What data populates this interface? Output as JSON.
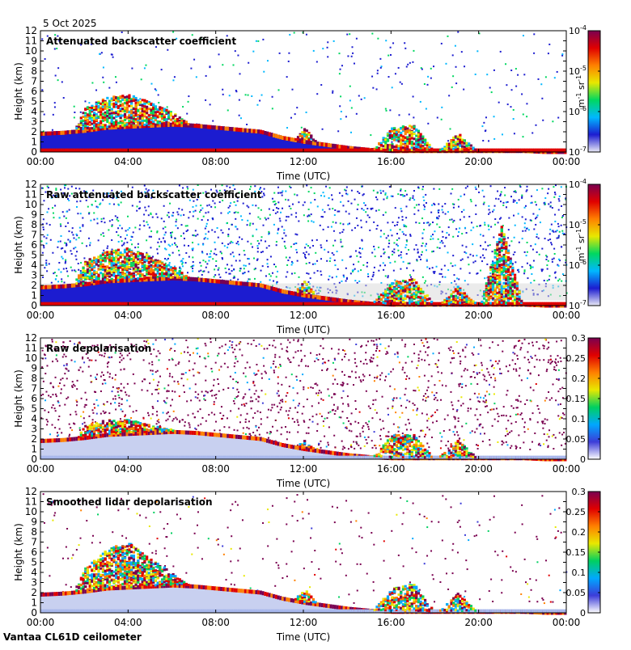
{
  "date": "5 Oct 2025",
  "footer": "Vantaa CL61D ceilometer",
  "colorbars": {
    "backscatter": {
      "stops": [
        "#e9e9f5",
        "#1c1cd0",
        "#00b8ff",
        "#00d860",
        "#e8e800",
        "#ff8000",
        "#e00000",
        "#7a0050"
      ],
      "ticks": [
        "10-7",
        "10-6",
        "10-5",
        "10-4"
      ],
      "unit_main_1": "m",
      "unit_exp_1": "-1",
      "unit_main_2": " sr",
      "unit_exp_2": "-1"
    },
    "depolarisation": {
      "stops": [
        "#ffffff",
        "#3c3cd8",
        "#00a8ff",
        "#00d060",
        "#e8e800",
        "#ff8000",
        "#e00000",
        "#7a0050"
      ],
      "ticks": [
        "0",
        "0.05",
        "0.1",
        "0.15",
        "0.2",
        "0.25",
        "0.3"
      ]
    }
  },
  "chart_data": [
    {
      "type": "heatmap",
      "title": "Attenuated backscatter coefficient",
      "xlabel": "Time (UTC)",
      "ylabel": "Height (km)",
      "x_ticks": [
        "00:00",
        "04:00",
        "08:00",
        "12:00",
        "16:00",
        "20:00",
        "00:00"
      ],
      "y_ticks": [
        "0",
        "1",
        "2",
        "3",
        "4",
        "5",
        "6",
        "7",
        "8",
        "9",
        "10",
        "11",
        "12"
      ],
      "xlim_hours": [
        0,
        24
      ],
      "ylim_km": [
        0,
        12
      ],
      "colorbar": "backscatter",
      "colorbar_range": [
        1e-07,
        0.0001
      ],
      "colorbar_scale": "log",
      "cloud_top_km": [
        2.0,
        2.1,
        2.3,
        2.6,
        2.7,
        2.8,
        2.9,
        2.8,
        2.6,
        2.4,
        2.2,
        1.6,
        1.2,
        0.9,
        0.6,
        0.4,
        0.3,
        0.3,
        0.3,
        0.3,
        0.3,
        0.3,
        0.3,
        0.2,
        0.2
      ],
      "cloud_base_km": [
        0.2,
        0.2,
        0.2,
        0.2,
        0.2,
        0.2,
        0.2,
        0.2,
        0.2,
        0.2,
        0.2,
        0.2,
        0.2,
        0.2,
        0.2,
        0.2,
        0.2,
        0.2,
        0.2,
        0.2,
        0.2,
        0.2,
        0.2,
        0.2,
        0.2
      ],
      "plume_top_km": [
        0,
        0,
        4.5,
        5.5,
        5.8,
        5.0,
        4.0,
        2.5,
        0,
        0,
        0,
        0,
        2.5,
        0,
        0,
        0,
        2.5,
        2.8,
        0,
        2.0,
        0,
        0,
        0,
        0,
        0
      ],
      "noise_density": 0.1
    },
    {
      "type": "heatmap",
      "title": "Raw attenuated backscatter coefficient",
      "xlabel": "Time (UTC)",
      "ylabel": "Height (km)",
      "x_ticks": [
        "00:00",
        "04:00",
        "08:00",
        "12:00",
        "16:00",
        "20:00",
        "00:00"
      ],
      "y_ticks": [
        "0",
        "1",
        "2",
        "3",
        "4",
        "5",
        "6",
        "7",
        "8",
        "9",
        "10",
        "11",
        "12"
      ],
      "xlim_hours": [
        0,
        24
      ],
      "ylim_km": [
        0,
        12
      ],
      "colorbar": "backscatter",
      "colorbar_range": [
        1e-07,
        0.0001
      ],
      "colorbar_scale": "log",
      "cloud_top_km": [
        2.0,
        2.1,
        2.3,
        2.6,
        2.7,
        2.8,
        2.9,
        2.8,
        2.6,
        2.4,
        2.2,
        1.6,
        1.2,
        0.9,
        0.6,
        0.4,
        0.3,
        0.3,
        0.3,
        0.3,
        0.3,
        0.3,
        0.3,
        0.2,
        0.2
      ],
      "cloud_base_km": [
        0.2,
        0.2,
        0.2,
        0.2,
        0.2,
        0.2,
        0.2,
        0.2,
        0.2,
        0.2,
        0.2,
        0.2,
        0.2,
        0.2,
        0.2,
        0.2,
        0.2,
        0.2,
        0.2,
        0.2,
        0.2,
        0.2,
        0.2,
        0.2,
        0.2
      ],
      "plume_top_km": [
        0,
        0,
        4.5,
        5.5,
        5.8,
        5.0,
        4.0,
        2.5,
        0,
        0,
        0,
        0,
        2.5,
        0,
        0,
        0,
        2.5,
        2.8,
        0,
        2.0,
        0,
        8.0,
        0,
        0,
        0
      ],
      "noise_density": 0.55
    },
    {
      "type": "heatmap",
      "title": "Raw depolarisation",
      "xlabel": "Time (UTC)",
      "ylabel": "Height (km)",
      "x_ticks": [
        "00:00",
        "04:00",
        "08:00",
        "12:00",
        "16:00",
        "20:00",
        "00:00"
      ],
      "y_ticks": [
        "0",
        "1",
        "2",
        "3",
        "4",
        "5",
        "6",
        "7",
        "8",
        "9",
        "10",
        "11",
        "12"
      ],
      "xlim_hours": [
        0,
        24
      ],
      "ylim_km": [
        0,
        12
      ],
      "colorbar": "depolarisation",
      "colorbar_range": [
        0,
        0.3
      ],
      "colorbar_scale": "linear",
      "cloud_top_km": [
        2.0,
        2.1,
        2.3,
        2.6,
        2.7,
        2.8,
        2.9,
        2.8,
        2.6,
        2.4,
        2.2,
        1.6,
        1.2,
        0.9,
        0.6,
        0.4,
        0.3,
        0.3,
        0.3,
        0.3,
        0.3,
        0.3,
        0.3,
        0.2,
        0.2
      ],
      "cloud_base_km": [
        0.2,
        0.2,
        0.2,
        0.2,
        0.2,
        0.2,
        0.2,
        0.2,
        0.2,
        0.2,
        0.2,
        0.2,
        0.2,
        0.2,
        0.2,
        0.2,
        0.2,
        0.2,
        0.2,
        0.2,
        0.2,
        0.2,
        0.2,
        0.2,
        0.2
      ],
      "plume_top_km": [
        0,
        0,
        3.5,
        4.0,
        4.0,
        3.5,
        3.0,
        2.5,
        0,
        0,
        0,
        0,
        2.0,
        0,
        0,
        0,
        2.5,
        2.5,
        0,
        2.0,
        0,
        0,
        0,
        0,
        0
      ],
      "noise_density": 0.5
    },
    {
      "type": "heatmap",
      "title": "Smoothed lidar depolarisation",
      "xlabel": "Time (UTC)",
      "ylabel": "Height (km)",
      "x_ticks": [
        "00:00",
        "04:00",
        "08:00",
        "12:00",
        "16:00",
        "20:00",
        "00:00"
      ],
      "y_ticks": [
        "0",
        "1",
        "2",
        "3",
        "4",
        "5",
        "6",
        "7",
        "8",
        "9",
        "10",
        "11",
        "12"
      ],
      "xlim_hours": [
        0,
        24
      ],
      "ylim_km": [
        0,
        12
      ],
      "colorbar": "depolarisation",
      "colorbar_range": [
        0,
        0.3
      ],
      "colorbar_scale": "linear",
      "cloud_top_km": [
        2.0,
        2.1,
        2.3,
        2.6,
        2.7,
        2.8,
        2.9,
        2.8,
        2.6,
        2.4,
        2.2,
        1.6,
        1.2,
        0.9,
        0.6,
        0.4,
        0.3,
        0.3,
        0.3,
        0.3,
        0.3,
        0.3,
        0.3,
        0.2,
        0.2
      ],
      "cloud_base_km": [
        0.2,
        0.2,
        0.2,
        0.2,
        0.2,
        0.2,
        0.2,
        0.2,
        0.2,
        0.2,
        0.2,
        0.2,
        0.2,
        0.2,
        0.2,
        0.2,
        0.2,
        0.2,
        0.2,
        0.2,
        0.2,
        0.2,
        0.2,
        0.2,
        0.2
      ],
      "plume_top_km": [
        0,
        0,
        4.5,
        6.5,
        7.0,
        5.5,
        4.0,
        2.5,
        0,
        0,
        0,
        0,
        2.5,
        0,
        0,
        0,
        2.5,
        3.0,
        0,
        2.0,
        0,
        0,
        0,
        0,
        0
      ],
      "noise_density": 0.1
    }
  ]
}
